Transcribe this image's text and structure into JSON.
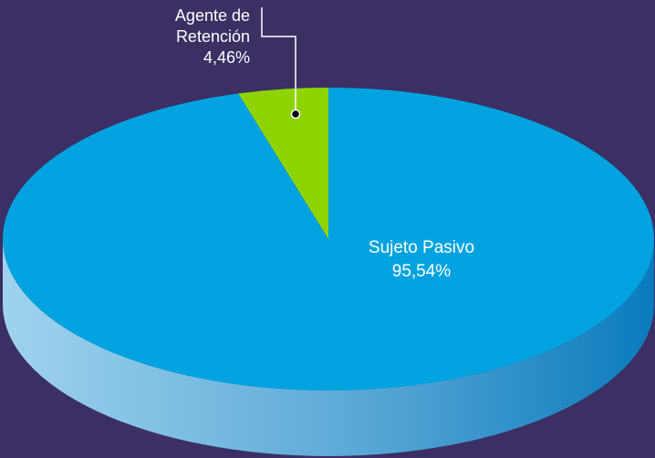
{
  "chart_data": {
    "type": "pie",
    "categories": [
      "Sujeto Pasivo",
      "Agente de Retención"
    ],
    "values": [
      95.54,
      4.46
    ],
    "value_labels": [
      "95,54%",
      "4,46%"
    ],
    "colors": [
      "#00a3e0",
      "#8fd400"
    ]
  }
}
